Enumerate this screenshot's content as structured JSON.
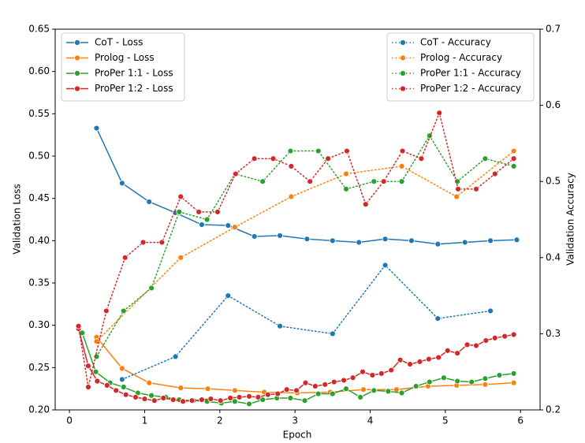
{
  "chart_data": {
    "type": "line",
    "xlabel": "Epoch",
    "ylabel": "Validation Loss",
    "y2label": "Validation Accuracy",
    "xlim": [
      -0.19,
      6.26
    ],
    "xticks": [
      0,
      1,
      2,
      3,
      4,
      5,
      6
    ],
    "ylim": [
      0.2,
      0.65
    ],
    "yticks": [
      {
        "value": 0.2,
        "label": "0.20"
      },
      0.25,
      {
        "value": 0.3,
        "label": "0.30"
      },
      0.35,
      {
        "value": 0.4,
        "label": "0.40"
      },
      0.45,
      {
        "value": 0.5,
        "label": "0.50"
      },
      0.55,
      {
        "value": 0.6,
        "label": "0.60"
      },
      0.65
    ],
    "y2lim": [
      0.2,
      0.7
    ],
    "y2ticks": [
      0.2,
      0.3,
      0.4,
      0.5,
      0.6,
      0.7
    ],
    "legend_y": "upper left",
    "legend_y2": "upper right",
    "series": [
      {
        "name": "CoT - Loss",
        "color": "#1f77b4",
        "linestyle": "solid",
        "x": [
          0.36,
          0.7,
          1.06,
          1.41,
          1.76,
          2.11,
          2.46,
          2.8,
          3.16,
          3.5,
          3.85,
          4.2,
          4.55,
          4.9,
          5.26,
          5.6,
          5.95
        ],
        "values": [
          0.533,
          0.468,
          0.446,
          0.433,
          0.419,
          0.418,
          0.405,
          0.406,
          0.402,
          0.4,
          0.398,
          0.402,
          0.4,
          0.396,
          0.398,
          0.4,
          0.401
        ]
      },
      {
        "name": "Prolog - Loss",
        "color": "#ff7f0e",
        "linestyle": "solid",
        "x": [
          0.36,
          0.7,
          1.06,
          1.48,
          1.84,
          2.2,
          2.59,
          3.03,
          3.47,
          3.91,
          4.35,
          4.77,
          5.15,
          5.53,
          5.91
        ],
        "values": [
          0.286,
          0.249,
          0.232,
          0.226,
          0.225,
          0.223,
          0.221,
          0.22,
          0.221,
          0.224,
          0.224,
          0.228,
          0.229,
          0.23,
          0.232
        ]
      },
      {
        "name": "ProPer 1:1 - Loss",
        "color": "#2ca02c",
        "linestyle": "solid",
        "x": [
          0.17,
          0.35,
          0.54,
          0.72,
          0.91,
          1.09,
          1.28,
          1.46,
          1.65,
          1.83,
          2.02,
          2.2,
          2.39,
          2.57,
          2.76,
          2.94,
          3.13,
          3.31,
          3.5,
          3.68,
          3.87,
          4.05,
          4.24,
          4.42,
          4.61,
          4.79,
          4.98,
          5.16,
          5.35,
          5.53,
          5.72,
          5.91
        ],
        "values": [
          0.291,
          0.245,
          0.232,
          0.227,
          0.22,
          0.217,
          0.215,
          0.212,
          0.211,
          0.21,
          0.208,
          0.21,
          0.207,
          0.212,
          0.214,
          0.214,
          0.211,
          0.219,
          0.219,
          0.225,
          0.215,
          0.223,
          0.222,
          0.22,
          0.228,
          0.233,
          0.238,
          0.234,
          0.233,
          0.237,
          0.241,
          0.243
        ]
      },
      {
        "name": "ProPer 1:2 - Loss",
        "color": "#d62728",
        "linestyle": "solid",
        "x": [
          0.12,
          0.25,
          0.37,
          0.5,
          0.62,
          0.75,
          0.88,
          1.0,
          1.13,
          1.25,
          1.38,
          1.51,
          1.63,
          1.76,
          1.88,
          2.01,
          2.14,
          2.26,
          2.39,
          2.51,
          2.64,
          2.77,
          2.89,
          3.02,
          3.14,
          3.27,
          3.4,
          3.52,
          3.65,
          3.77,
          3.9,
          4.03,
          4.15,
          4.28,
          4.4,
          4.53,
          4.66,
          4.78,
          4.91,
          5.03,
          5.16,
          5.29,
          5.41,
          5.54,
          5.66,
          5.79,
          5.91
        ],
        "values": [
          0.296,
          0.252,
          0.234,
          0.229,
          0.223,
          0.218,
          0.215,
          0.213,
          0.211,
          0.214,
          0.212,
          0.21,
          0.211,
          0.212,
          0.213,
          0.211,
          0.214,
          0.215,
          0.216,
          0.215,
          0.218,
          0.219,
          0.224,
          0.223,
          0.232,
          0.228,
          0.23,
          0.233,
          0.235,
          0.238,
          0.245,
          0.241,
          0.243,
          0.247,
          0.259,
          0.254,
          0.257,
          0.26,
          0.262,
          0.27,
          0.267,
          0.277,
          0.276,
          0.282,
          0.285,
          0.287,
          0.289
        ]
      },
      {
        "name": "CoT - Accuracy",
        "color": "#1f77b4",
        "linestyle": "dotted",
        "axis": "y2",
        "x": [
          0.7,
          1.41,
          2.11,
          2.8,
          3.5,
          4.2,
          4.9,
          5.6
        ],
        "values": [
          0.24,
          0.27,
          0.35,
          0.31,
          0.3,
          0.39,
          0.32,
          0.33
        ]
      },
      {
        "name": "Prolog - Accuracy",
        "color": "#ff7f0e",
        "linestyle": "dotted",
        "axis": "y2",
        "x": [
          0.36,
          1.48,
          2.2,
          2.95,
          3.68,
          4.42,
          5.15,
          5.91
        ],
        "values": [
          0.29,
          0.4,
          0.44,
          0.48,
          0.51,
          0.52,
          0.48,
          0.54
        ]
      },
      {
        "name": "ProPer 1:1 - Accuracy",
        "color": "#2ca02c",
        "linestyle": "dotted",
        "axis": "y2",
        "x": [
          0.36,
          0.72,
          1.09,
          1.46,
          1.83,
          2.2,
          2.57,
          2.94,
          3.31,
          3.68,
          4.05,
          4.42,
          4.79,
          5.16,
          5.53,
          5.91
        ],
        "values": [
          0.27,
          0.33,
          0.36,
          0.46,
          0.45,
          0.51,
          0.5,
          0.54,
          0.54,
          0.49,
          0.5,
          0.5,
          0.56,
          0.5,
          0.53,
          0.52
        ]
      },
      {
        "name": "ProPer 1:2 - Accuracy",
        "color": "#d62728",
        "linestyle": "dotted",
        "axis": "y2",
        "x": [
          0.12,
          0.25,
          0.49,
          0.74,
          0.98,
          1.23,
          1.48,
          1.72,
          1.97,
          2.21,
          2.46,
          2.71,
          2.95,
          3.2,
          3.44,
          3.69,
          3.94,
          4.18,
          4.43,
          4.68,
          4.92,
          5.17,
          5.41,
          5.66,
          5.91
        ],
        "values": [
          0.31,
          0.23,
          0.33,
          0.4,
          0.42,
          0.42,
          0.48,
          0.46,
          0.46,
          0.51,
          0.53,
          0.53,
          0.52,
          0.5,
          0.53,
          0.54,
          0.47,
          0.5,
          0.54,
          0.53,
          0.59,
          0.49,
          0.49,
          0.51,
          0.53
        ]
      }
    ]
  }
}
